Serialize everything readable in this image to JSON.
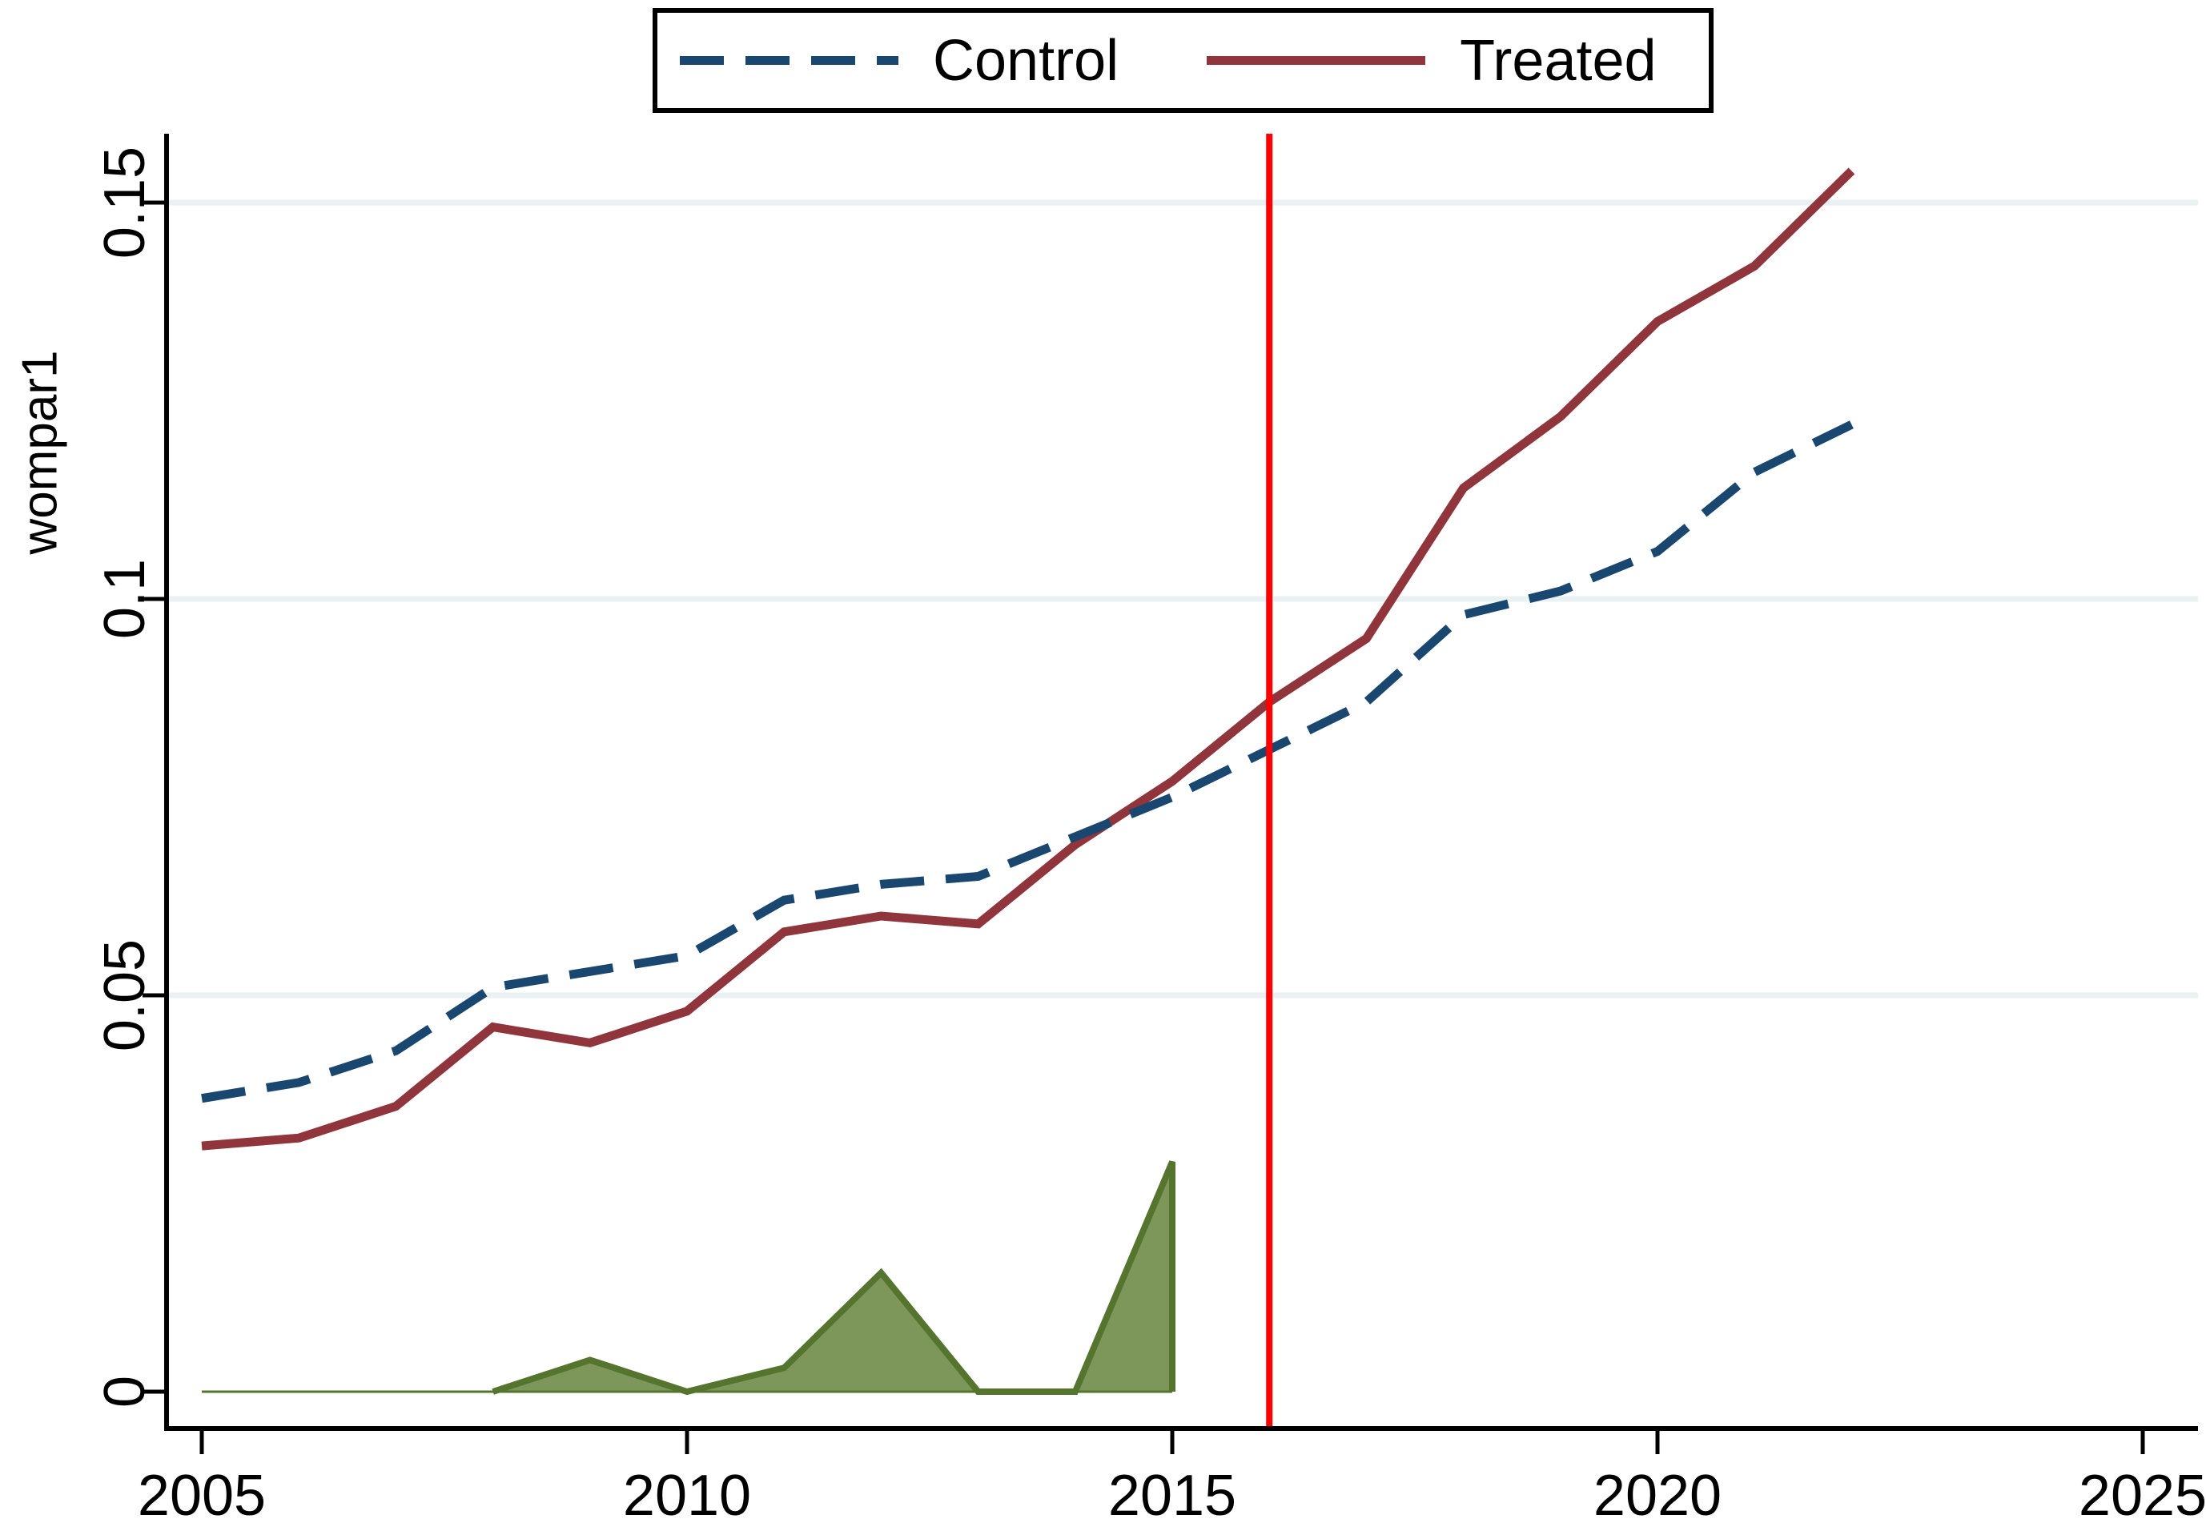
{
  "chart_data": {
    "type": "line",
    "title": "",
    "xlabel": "",
    "ylabel": "wompar1",
    "x": [
      2005,
      2006,
      2007,
      2008,
      2009,
      2010,
      2011,
      2012,
      2013,
      2014,
      2015,
      2016,
      2017,
      2018,
      2019,
      2020,
      2021,
      2022
    ],
    "series": [
      {
        "name": "Control",
        "type": "line",
        "style": "dashed",
        "color": "#1a476f",
        "values": [
          0.037,
          0.039,
          0.043,
          0.051,
          0.053,
          0.055,
          0.062,
          0.064,
          0.065,
          0.07,
          0.075,
          0.081,
          0.087,
          0.098,
          0.101,
          0.106,
          0.116,
          0.122
        ]
      },
      {
        "name": "Treated",
        "type": "line",
        "style": "solid",
        "color": "#90353b",
        "values": [
          0.031,
          0.032,
          0.036,
          0.046,
          0.044,
          0.048,
          0.058,
          0.06,
          0.059,
          0.069,
          0.077,
          0.087,
          0.095,
          0.114,
          0.123,
          0.135,
          0.142,
          0.154
        ]
      }
    ],
    "area_series": {
      "type": "area",
      "fill": "#7d965a",
      "border": "#55752f",
      "x": [
        2005,
        2006,
        2007,
        2008,
        2009,
        2010,
        2011,
        2012,
        2013,
        2014,
        2015
      ],
      "values": [
        0,
        0,
        0,
        0,
        0.004,
        0,
        0.003,
        0.015,
        0,
        0,
        0.029
      ]
    },
    "treatment_line_x": 2016,
    "x_ticks": [
      {
        "value": 2005,
        "label": "2005"
      },
      {
        "value": 2010,
        "label": "2010"
      },
      {
        "value": 2015,
        "label": "2015"
      },
      {
        "value": 2020,
        "label": "2020"
      },
      {
        "value": 2025,
        "label": "2025"
      }
    ],
    "y_ticks": [
      {
        "value": 0,
        "label": "0"
      },
      {
        "value": 0.05,
        "label": "0.05"
      },
      {
        "value": 0.1,
        "label": "0.1"
      },
      {
        "value": 0.15,
        "label": "0.15"
      }
    ],
    "xlim": [
      2004.64,
      2025.57
    ],
    "ylim": [
      0,
      0.159
    ],
    "grid": true,
    "legend_position": "top-center",
    "colors": {
      "control": "#1a476f",
      "treated": "#90353b",
      "area_fill": "#7d965a",
      "area_border": "#55752f",
      "grid": "#e9f1f2",
      "treatment_line": "#ff0000",
      "axis": "#000000",
      "background": "#ffffff"
    }
  }
}
